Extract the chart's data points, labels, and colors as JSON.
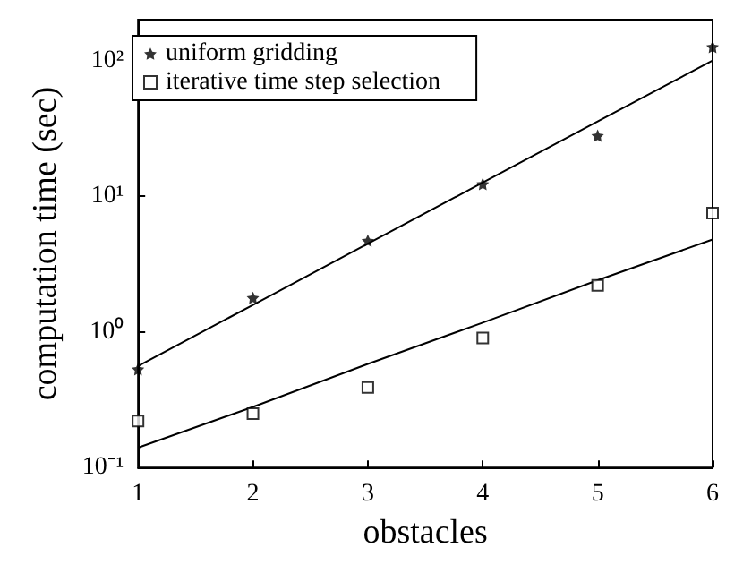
{
  "chart_data": {
    "type": "scatter",
    "xlabel": "obstacles",
    "ylabel": "computation time (sec)",
    "x": [
      1,
      2,
      3,
      4,
      5,
      6
    ],
    "series": [
      {
        "name": "uniform gridding",
        "color": "#000000",
        "marker": "star",
        "values": [
          0.53,
          1.78,
          4.7,
          12.3,
          27.9,
          126
        ]
      },
      {
        "name": "iterative time step selection",
        "color": "#000000",
        "marker": "square",
        "values": [
          0.22,
          0.25,
          0.39,
          0.9,
          2.2,
          7.5
        ]
      },
      {
        "type": "line",
        "color": "#000000",
        "marker": "none",
        "line_style": "solid",
        "values": [
          0.56,
          1.58,
          4.47,
          12.6,
          35.6,
          100
        ]
      },
      {
        "type": "line",
        "color": "#000000",
        "marker": "none",
        "line_style": "solid",
        "values": [
          0.14,
          0.28,
          0.58,
          1.17,
          2.4,
          4.8
        ]
      }
    ],
    "xlim": [
      1,
      6
    ],
    "xticks": [
      1,
      2,
      3,
      4,
      5,
      6
    ],
    "ylim": [
      0.1,
      200
    ],
    "yticks": [
      {
        "value": 0.1,
        "label": "10⁻¹"
      },
      {
        "value": 1,
        "label": "10⁰"
      },
      {
        "value": 10,
        "label": "10¹"
      },
      {
        "value": 100,
        "label": "10²"
      }
    ],
    "log": "y",
    "grid": false,
    "legend": "top left"
  }
}
